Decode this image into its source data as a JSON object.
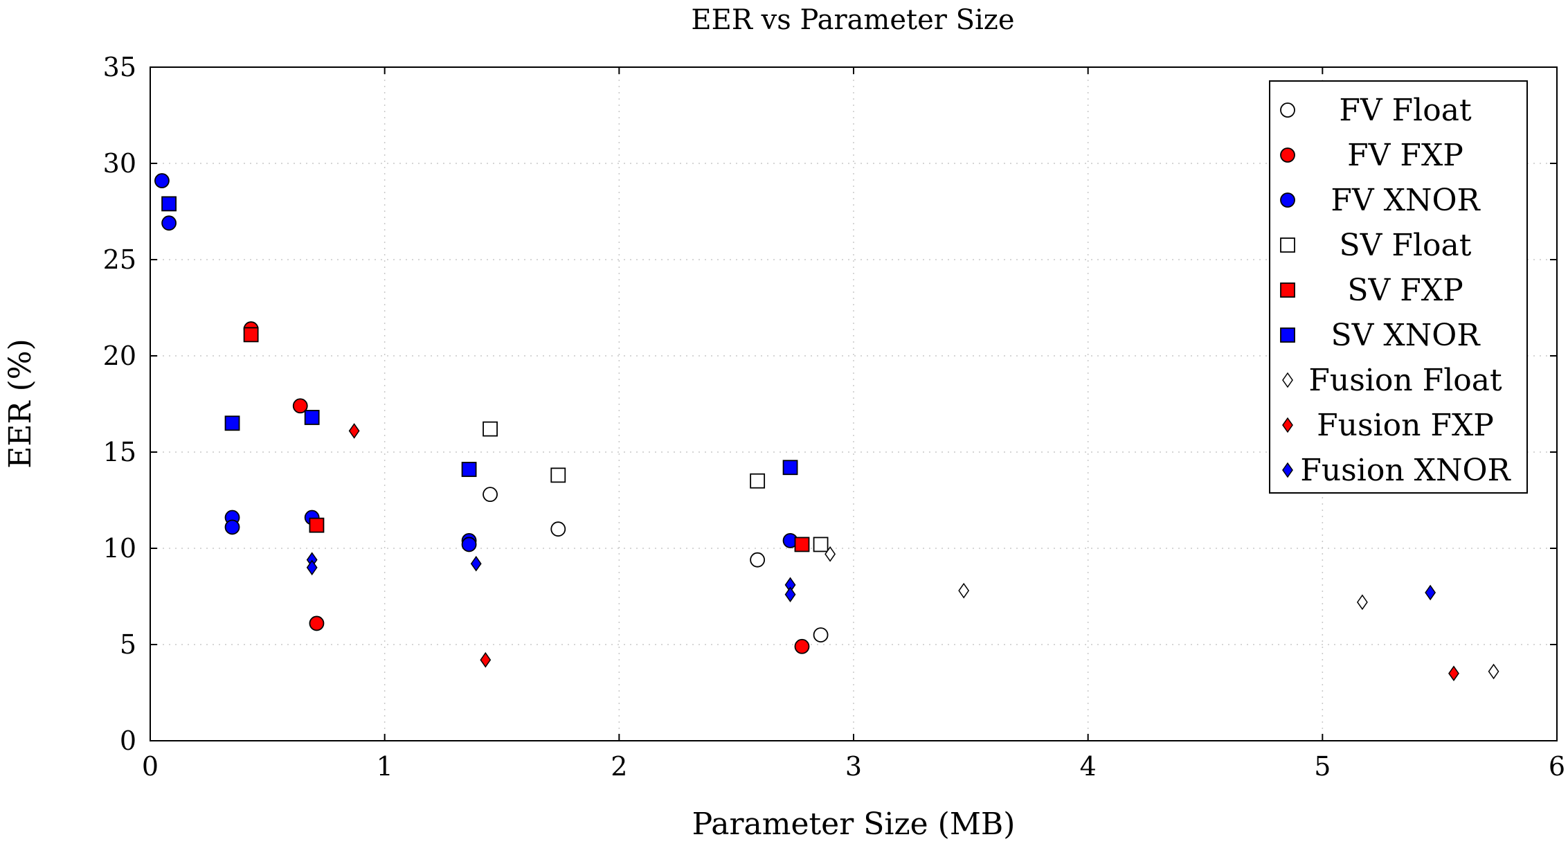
{
  "chart_data": {
    "type": "scatter",
    "title": "EER vs Parameter Size",
    "xlabel": "Parameter Size (MB)",
    "ylabel": "EER (%)",
    "xlim": [
      0,
      6
    ],
    "ylim": [
      0,
      35
    ],
    "xticks": [
      0,
      1,
      2,
      3,
      4,
      5,
      6
    ],
    "yticks": [
      0,
      5,
      10,
      15,
      20,
      25,
      30,
      35
    ],
    "grid": true,
    "legend_position": "top-right",
    "series": [
      {
        "name": "FV Float",
        "marker": "circle",
        "color": "#ffffff",
        "points": [
          [
            1.45,
            12.8
          ],
          [
            1.74,
            11.0
          ],
          [
            2.59,
            9.4
          ],
          [
            2.86,
            5.5
          ]
        ]
      },
      {
        "name": "FV FXP",
        "marker": "circle",
        "color": "#ff0000",
        "points": [
          [
            0.43,
            21.4
          ],
          [
            0.64,
            17.4
          ],
          [
            0.71,
            6.1
          ],
          [
            2.78,
            4.9
          ]
        ]
      },
      {
        "name": "FV XNOR",
        "marker": "circle",
        "color": "#0000ff",
        "points": [
          [
            0.05,
            29.1
          ],
          [
            0.08,
            26.9
          ],
          [
            0.35,
            11.6
          ],
          [
            0.35,
            11.1
          ],
          [
            0.69,
            11.6
          ],
          [
            1.36,
            10.4
          ],
          [
            1.36,
            10.2
          ],
          [
            2.73,
            10.4
          ]
        ]
      },
      {
        "name": "SV Float",
        "marker": "square",
        "color": "#ffffff",
        "points": [
          [
            1.45,
            16.2
          ],
          [
            1.74,
            13.8
          ],
          [
            2.59,
            13.5
          ],
          [
            2.86,
            10.2
          ]
        ]
      },
      {
        "name": "SV FXP",
        "marker": "square",
        "color": "#ff0000",
        "points": [
          [
            0.43,
            21.1
          ],
          [
            0.71,
            11.2
          ],
          [
            2.78,
            10.2
          ]
        ]
      },
      {
        "name": "SV XNOR",
        "marker": "square",
        "color": "#0000ff",
        "points": [
          [
            0.08,
            27.9
          ],
          [
            0.35,
            16.5
          ],
          [
            0.69,
            16.8
          ],
          [
            1.36,
            14.1
          ],
          [
            2.73,
            14.2
          ]
        ]
      },
      {
        "name": "Fusion Float",
        "marker": "diamond",
        "color": "#ffffff",
        "points": [
          [
            2.9,
            9.7
          ],
          [
            3.47,
            7.8
          ],
          [
            5.17,
            7.2
          ],
          [
            5.73,
            3.6
          ]
        ]
      },
      {
        "name": "Fusion FXP",
        "marker": "diamond",
        "color": "#ff0000",
        "points": [
          [
            0.87,
            16.1
          ],
          [
            1.43,
            4.2
          ],
          [
            5.56,
            3.5
          ]
        ]
      },
      {
        "name": "Fusion XNOR",
        "marker": "diamond",
        "color": "#0000ff",
        "points": [
          [
            0.69,
            9.4
          ],
          [
            0.69,
            9.0
          ],
          [
            1.39,
            9.2
          ],
          [
            2.73,
            8.1
          ],
          [
            2.73,
            7.6
          ],
          [
            5.46,
            7.7
          ]
        ]
      }
    ]
  }
}
